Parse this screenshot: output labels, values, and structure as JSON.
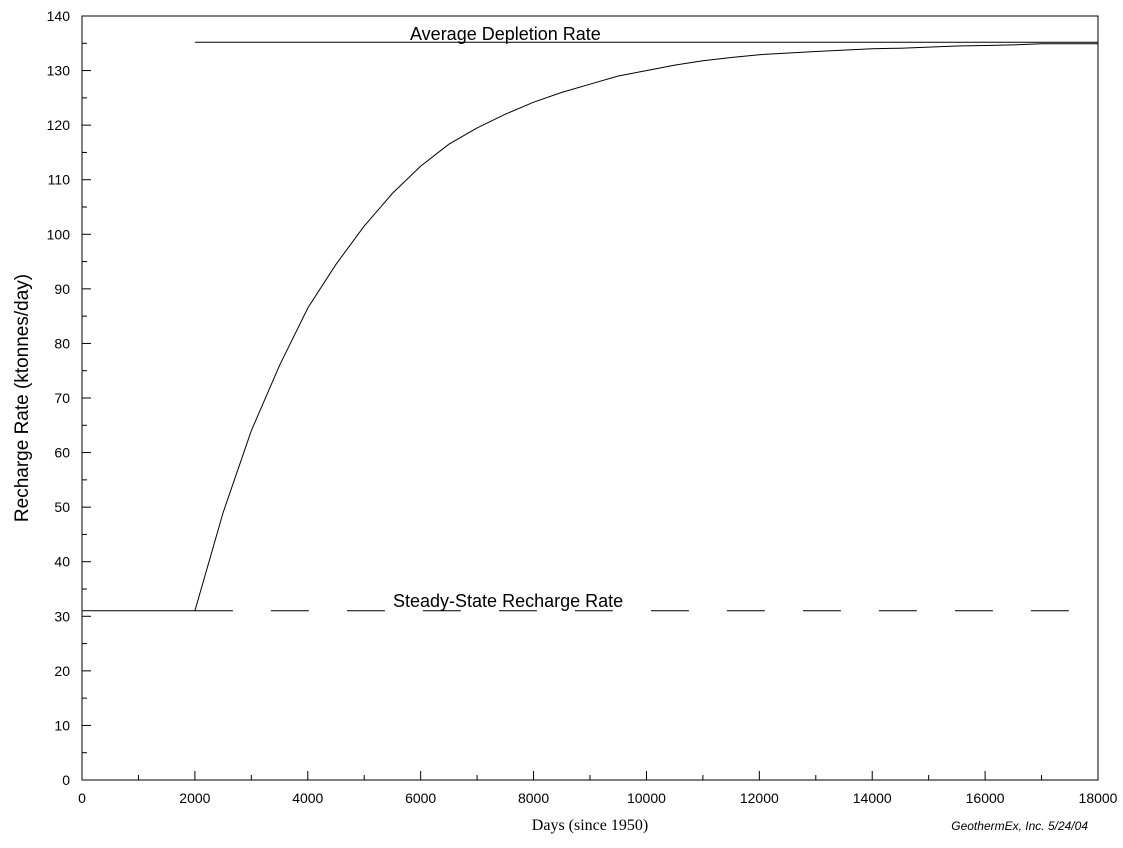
{
  "chart_data": {
    "type": "line",
    "title": "",
    "xlabel": "Days (since 1950)",
    "ylabel": "Recharge Rate (ktonnes/day)",
    "xlim": [
      0,
      18000
    ],
    "ylim": [
      0,
      140
    ],
    "x_ticks": [
      0,
      2000,
      4000,
      6000,
      8000,
      10000,
      12000,
      14000,
      16000,
      18000
    ],
    "y_ticks": [
      0,
      10,
      20,
      30,
      40,
      50,
      60,
      70,
      80,
      90,
      100,
      110,
      120,
      130,
      140
    ],
    "grid": false,
    "legend": "none",
    "series": [
      {
        "style": "solid",
        "x": [
          0,
          2000,
          2500,
          3000,
          3500,
          4000,
          4500,
          5000,
          5500,
          6000,
          6500,
          7000,
          7500,
          8000,
          8500,
          9000,
          9500,
          10000,
          10500,
          11000,
          11500,
          12000,
          13000,
          14000,
          14500,
          15000,
          15500,
          16000,
          16500,
          17000,
          18000
        ],
        "values": [
          31,
          31,
          49,
          64,
          76,
          86.5,
          94.5,
          101.5,
          107.5,
          112.5,
          116.5,
          119.5,
          122,
          124.2,
          126,
          127.5,
          129,
          130,
          131,
          131.8,
          132.4,
          132.9,
          133.5,
          134,
          134.1,
          134.3,
          134.5,
          134.6,
          134.7,
          134.9,
          134.9
        ]
      },
      {
        "style": "solid",
        "x": [
          2000,
          18000
        ],
        "values": [
          135.2,
          135.2
        ]
      },
      {
        "style": "dashed",
        "x": [
          2000,
          18000
        ],
        "values": [
          31,
          31
        ]
      }
    ],
    "annotations": [
      {
        "text": "Average Depletion Rate",
        "x": 8000,
        "y": 137
      },
      {
        "text": "Steady-State Recharge Rate",
        "x": 7000,
        "y": 32.5
      }
    ],
    "credit": "GeothermEx, Inc. 5/24/04"
  }
}
